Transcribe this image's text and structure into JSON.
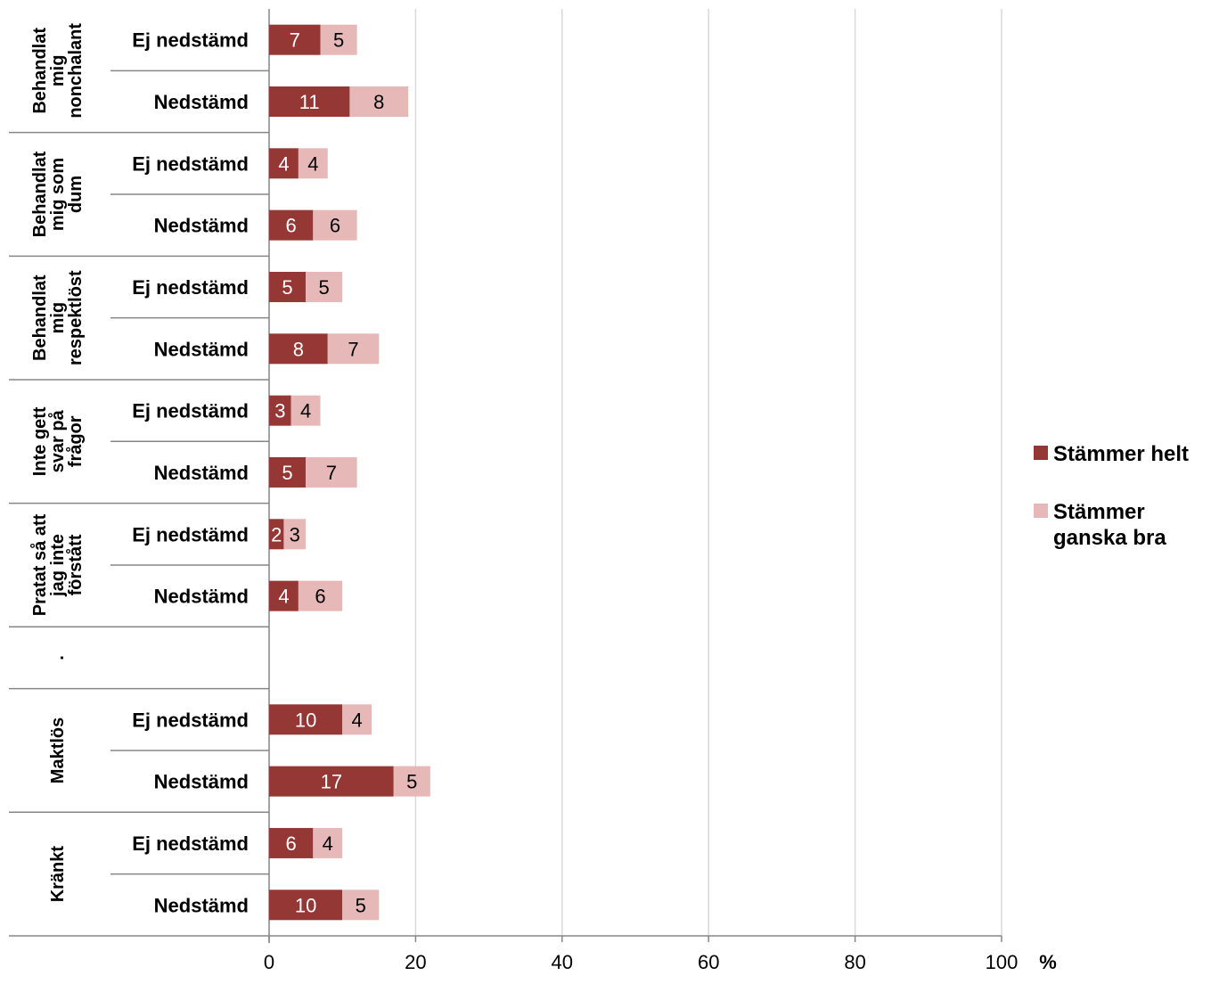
{
  "chart_data": {
    "type": "bar",
    "orientation": "horizontal",
    "stacked": true,
    "xlim": [
      0,
      100
    ],
    "x_ticks": [
      "0",
      "20",
      "40",
      "60",
      "80",
      "100"
    ],
    "x_unit": "%",
    "grid": true,
    "legend_position": "right",
    "groups": [
      {
        "label": "Behandlat mig nonchalant",
        "lines": [
          "Behandlat",
          "mig",
          "nonchalant"
        ]
      },
      {
        "label": "Behandlat mig som dum",
        "lines": [
          "Behandlat",
          "mig som",
          "dum"
        ]
      },
      {
        "label": "Behandlat mig respektlöst",
        "lines": [
          "Behandlat",
          "mig",
          "respektlöst"
        ]
      },
      {
        "label": "Inte gett svar på frågor",
        "lines": [
          "Inte gett",
          "svar på",
          "frågor"
        ]
      },
      {
        "label": "Pratat så att jag inte förstått",
        "lines": [
          "Pratat så att",
          "jag inte",
          "förstått"
        ]
      },
      {
        "label": ".",
        "lines": [
          "."
        ]
      },
      {
        "label": "Maktlös",
        "lines": [
          "Maktlös"
        ]
      },
      {
        "label": "Kränkt",
        "lines": [
          "Kränkt"
        ]
      }
    ],
    "categories": [
      "Ej nedstämd",
      "Nedstämd",
      "Ej nedstämd",
      "Nedstämd",
      "Ej nedstämd",
      "Nedstämd",
      "Ej nedstämd",
      "Nedstämd",
      "Ej nedstämd",
      "Nedstämd",
      "",
      "Ej nedstämd",
      "Nedstämd",
      "Ej nedstämd",
      "Nedstämd"
    ],
    "category_group": [
      0,
      0,
      1,
      1,
      2,
      2,
      3,
      3,
      4,
      4,
      5,
      6,
      6,
      7,
      7
    ],
    "series": [
      {
        "name": "Stämmer helt",
        "color": "#953735",
        "values": [
          7,
          11,
          4,
          6,
          5,
          8,
          3,
          5,
          2,
          4,
          null,
          10,
          17,
          6,
          10
        ],
        "labels": [
          "7",
          "11",
          "4",
          "6",
          "5",
          "8",
          "3",
          "5",
          "2",
          "4",
          "",
          "10",
          "17",
          "6",
          "10"
        ]
      },
      {
        "name": "Stämmer ganska bra",
        "color": "#e6b9b8",
        "values": [
          5,
          8,
          4,
          6,
          5,
          7,
          4,
          7,
          3,
          6,
          null,
          4,
          5,
          4,
          5
        ],
        "labels": [
          "5",
          "8",
          "4",
          "6",
          "5",
          "7",
          "4",
          "7",
          "3",
          "6",
          "",
          "4",
          "5",
          "4",
          "5"
        ]
      }
    ],
    "legend": {
      "series0_lines": [
        "Stämmer helt"
      ],
      "series1_lines": [
        "Stämmer",
        "ganska bra"
      ]
    }
  }
}
